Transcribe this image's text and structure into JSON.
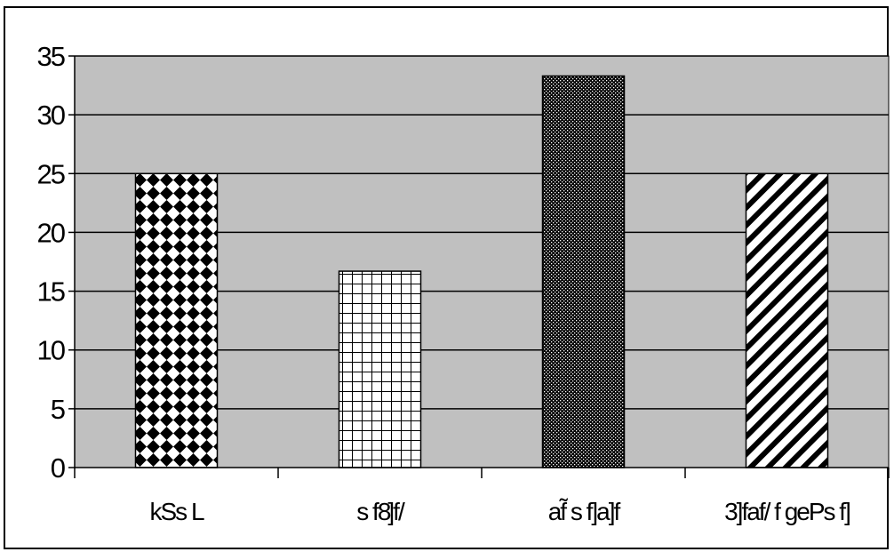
{
  "chart_data": {
    "type": "bar",
    "title": "",
    "xlabel": "",
    "ylabel": "",
    "categories": [
      "kSs L",
      "s f8]f/",
      "af̃ s f]a]f",
      "3]faf/ f gePs f]"
    ],
    "values": [
      25,
      16.7,
      33.3,
      25
    ],
    "ylim": [
      0,
      35
    ],
    "yticks": [
      0,
      5,
      10,
      15,
      20,
      25,
      30,
      35
    ],
    "grid": true,
    "legend": "none",
    "colors": {
      "plot_background": "#c0c0c0",
      "frame": "#000000",
      "gridline": "#000000"
    },
    "bar_patterns": [
      "diamond-checker",
      "grid",
      "dense-dots",
      "diagonal-stripes"
    ]
  }
}
